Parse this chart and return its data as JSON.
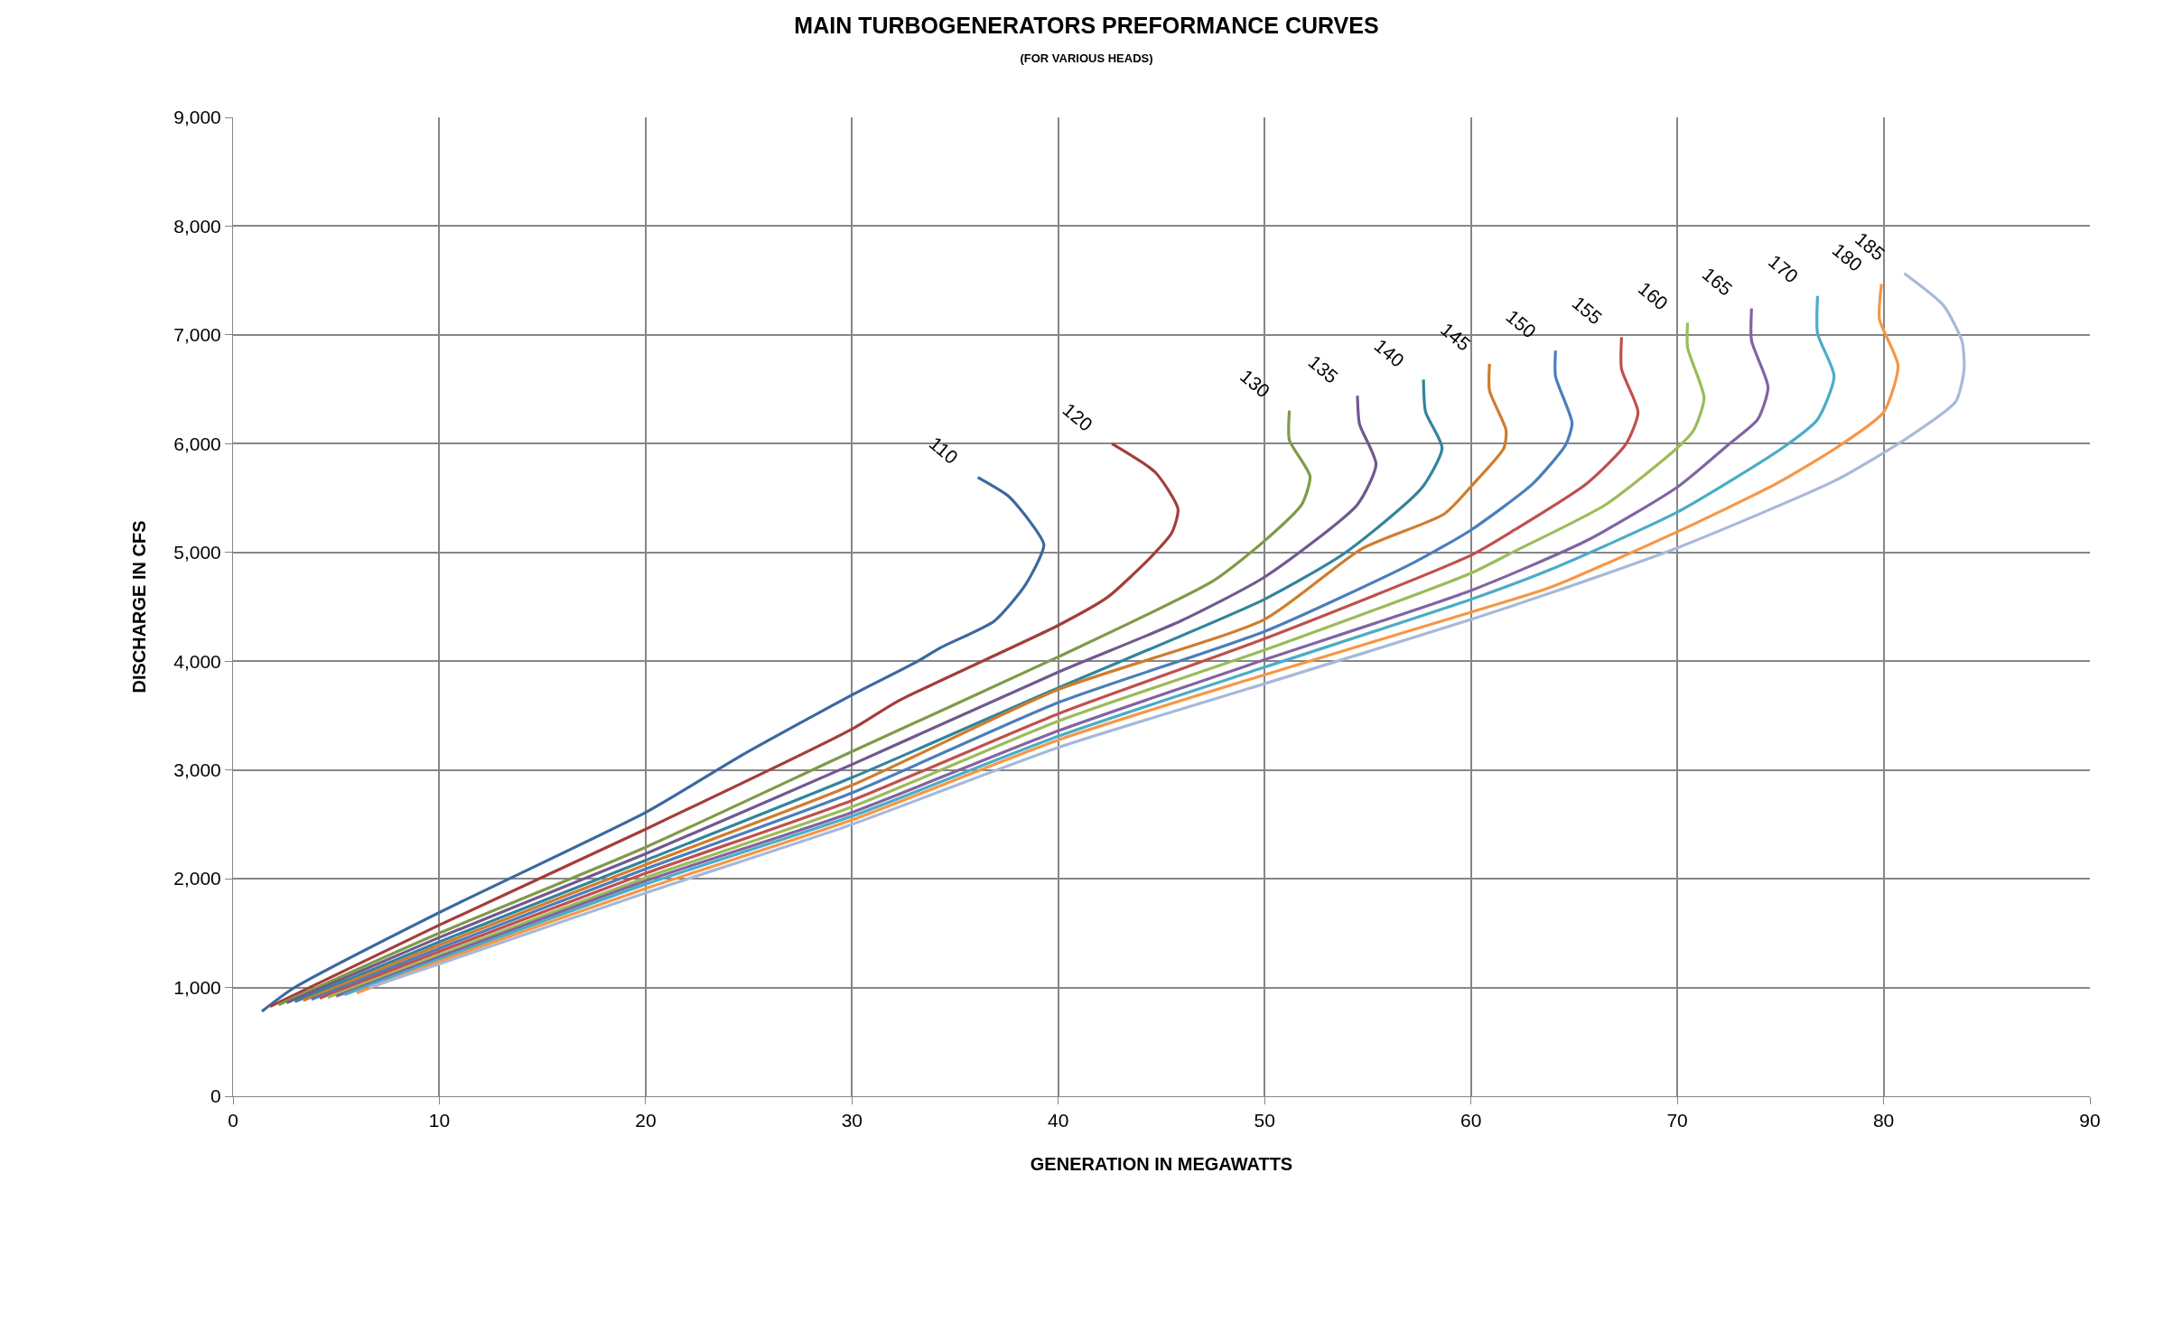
{
  "chart_data": {
    "type": "line",
    "title": "MAIN TURBOGENERATORS PREFORMANCE CURVES",
    "subtitle": "(FOR VARIOUS HEADS)",
    "xlabel": "GENERATION IN MEGAWATTS",
    "ylabel": "DISCHARGE IN CFS",
    "xlim": [
      0,
      90
    ],
    "xticks": [
      0,
      10,
      20,
      30,
      40,
      50,
      60,
      70,
      80,
      90
    ],
    "ylim": [
      0,
      9000
    ],
    "yticks": [
      0,
      {
        "value": 1000,
        "label": "1,000"
      },
      {
        "value": 2000,
        "label": "2,000"
      },
      {
        "value": 3000,
        "label": "3,000"
      },
      {
        "value": 4000,
        "label": "4,000"
      },
      {
        "value": 5000,
        "label": "5,000"
      },
      {
        "value": 6000,
        "label": "6,000"
      },
      {
        "value": 7000,
        "label": "7,000"
      },
      {
        "value": 8000,
        "label": "8,000"
      },
      {
        "value": 9000,
        "label": "9,000"
      }
    ],
    "grid": true,
    "legend": false,
    "marker": "none",
    "line_style": "solid",
    "series": [
      {
        "name": "110",
        "color": "#3b689f",
        "x": [
          1.4,
          2.9,
          10,
          20,
          24.7,
          30,
          33.1,
          34.3,
          36.9,
          38.4,
          39.3,
          38.6,
          37.6,
          36.1
        ],
        "values": [
          780,
          990,
          1690,
          2610,
          3140,
          3690,
          3990,
          4125,
          4370,
          4700,
          5070,
          5290,
          5515,
          5690
        ]
      },
      {
        "name": "120",
        "color": "#a33e3b",
        "x": [
          1.8,
          10,
          20,
          30,
          32.2,
          40,
          42.4,
          44.5,
          45.5,
          45.8,
          44.7,
          42.6
        ],
        "values": [
          825,
          1574,
          2456,
          3376,
          3630,
          4330,
          4590,
          4960,
          5180,
          5400,
          5737,
          6000
        ]
      },
      {
        "name": "130",
        "color": "#7f9a48",
        "x": [
          2.2,
          10,
          20,
          30,
          40,
          47.5,
          50,
          51.8,
          52.2,
          51.2,
          51.2
        ],
        "values": [
          840,
          1500,
          2290,
          3170,
          4040,
          4737,
          5107,
          5441,
          5700,
          6033,
          6304
        ]
      },
      {
        "name": "135",
        "color": "#71588f",
        "x": [
          2.6,
          10,
          20,
          30,
          40,
          45.9,
          50,
          54.5,
          55.4,
          54.6,
          54.5
        ],
        "values": [
          860,
          1460,
          2230,
          3050,
          3900,
          4367,
          4774,
          5441,
          5811,
          6181,
          6441
        ]
      },
      {
        "name": "140",
        "color": "#31849b",
        "x": [
          3.0,
          10,
          20,
          30,
          40,
          50,
          53.9,
          57.6,
          58.6,
          57.8,
          57.7
        ],
        "values": [
          870,
          1420,
          2170,
          2930,
          3756,
          4570,
          4996,
          5589,
          5959,
          6293,
          6589
        ]
      },
      {
        "name": "145",
        "color": "#d07c2d",
        "x": [
          3.4,
          10,
          20,
          30,
          40,
          50,
          54.7,
          58.7,
          60.1,
          61.6,
          61.7,
          60.9,
          60.9
        ],
        "values": [
          880,
          1390,
          2130,
          2860,
          3740,
          4385,
          5033,
          5353,
          5626,
          5961,
          6125,
          6488,
          6734
        ]
      },
      {
        "name": "150",
        "color": "#4a7ebb",
        "x": [
          3.8,
          10,
          20,
          30,
          40,
          50,
          57.2,
          60,
          63.0,
          64.6,
          64.9,
          64.1,
          64.1
        ],
        "values": [
          890,
          1360,
          2090,
          2790,
          3620,
          4274,
          4904,
          5206,
          5632,
          5993,
          6190,
          6620,
          6856
        ]
      },
      {
        "name": "155",
        "color": "#c0504d",
        "x": [
          4.2,
          10,
          20,
          30,
          40,
          50,
          60,
          62.1,
          65.6,
          67.5,
          68.1,
          67.3,
          67.3
        ],
        "values": [
          900,
          1330,
          2050,
          2720,
          3517,
          4207,
          4974,
          5206,
          5632,
          5993,
          6289,
          6685,
          6980
        ]
      },
      {
        "name": "160",
        "color": "#9bbb59",
        "x": [
          4.6,
          10,
          20,
          30,
          40,
          50,
          60,
          62.1,
          66.5,
          70,
          70.8,
          71.3,
          70.5,
          70.5
        ],
        "values": [
          910,
          1300,
          2010,
          2660,
          3450,
          4103,
          4810,
          5009,
          5436,
          5961,
          6125,
          6420,
          6882,
          7112
        ]
      },
      {
        "name": "165",
        "color": "#8064a2",
        "x": [
          5.0,
          10,
          20,
          30,
          40,
          50,
          60,
          65.6,
          70,
          72.5,
          73.9,
          74.4,
          73.6,
          73.6
        ],
        "values": [
          920,
          1280,
          1980,
          2610,
          3360,
          4014,
          4650,
          5108,
          5600,
          5994,
          6223,
          6519,
          6947,
          7243
        ]
      },
      {
        "name": "170",
        "color": "#4bacc6",
        "x": [
          5.4,
          10,
          20,
          30,
          40,
          50,
          60,
          63.9,
          70,
          75.1,
          76.8,
          77.6,
          76.8,
          76.8
        ],
        "values": [
          935,
          1260,
          1950,
          2575,
          3310,
          3945,
          4568,
          4846,
          5370,
          5961,
          6223,
          6620,
          7013,
          7358
        ]
      },
      {
        "name": "180",
        "color": "#f79646",
        "x": [
          6.0,
          10,
          20,
          30,
          40,
          50,
          60,
          63.9,
          70,
          74.8,
          77.7,
          80.0,
          80.7,
          79.8,
          79.9
        ],
        "values": [
          950,
          1240,
          1910,
          2540,
          3276,
          3876,
          4450,
          4682,
          5190,
          5632,
          5961,
          6289,
          6716,
          7144,
          7468
        ]
      },
      {
        "name": "185",
        "color": "#a7b9d9",
        "x": [
          6.6,
          10,
          20,
          30,
          40,
          50,
          60,
          63.9,
          70,
          77.7,
          81.2,
          83.5,
          83.9,
          83.8,
          82.9,
          81.0
        ],
        "values": [
          1000,
          1216,
          1870,
          2500,
          3207,
          3793,
          4384,
          4630,
          5042,
          5665,
          6059,
          6387,
          6680,
          6944,
          7272,
          7566
        ]
      }
    ]
  }
}
